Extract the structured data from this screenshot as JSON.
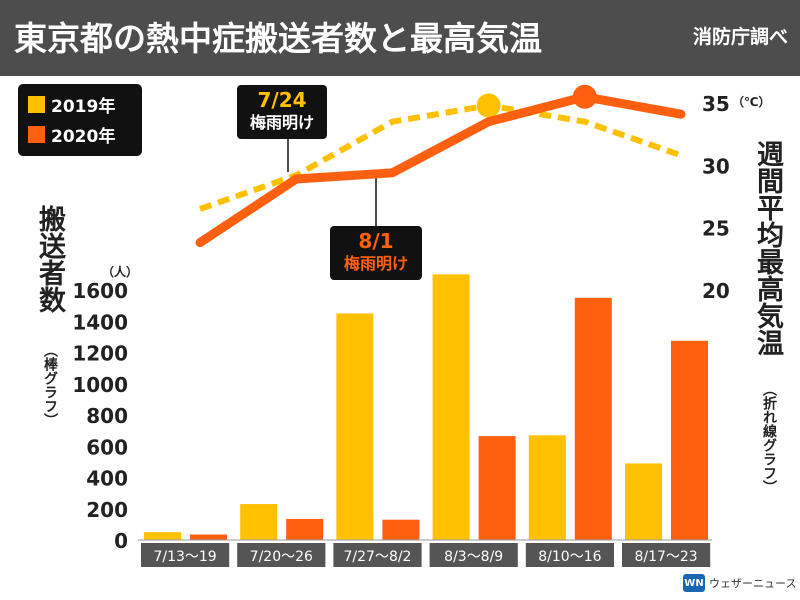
{
  "header": {
    "title": "東京都の熱中症搬送者数と最高気温",
    "source": "消防庁調べ"
  },
  "legend": {
    "items": [
      {
        "label": "2019年",
        "color": "#ffc000"
      },
      {
        "label": "2020年",
        "color": "#ff6010"
      }
    ]
  },
  "axes": {
    "left_title": "搬送者数",
    "left_sub": "（棒グラフ）",
    "left_unit": "（人）",
    "right_title": "週間平均最高気温",
    "right_sub": "（折れ線グラフ）",
    "right_unit": "（℃）"
  },
  "callouts": {
    "c2019": {
      "date": "7/24",
      "note": "梅雨明け"
    },
    "c2020": {
      "date": "8/1",
      "note": "梅雨明け"
    }
  },
  "brand": {
    "name": "ウェザーニュース",
    "logo_text": "WN"
  },
  "chart_data": {
    "type": "bar",
    "categories": [
      "7/13～19",
      "7/20～26",
      "7/27～8/2",
      "8/3～8/9",
      "8/10～16",
      "8/17～23"
    ],
    "series": [
      {
        "name": "2019年",
        "values": [
          50,
          230,
          1450,
          1700,
          670,
          490
        ]
      },
      {
        "name": "2020年",
        "values": [
          35,
          135,
          130,
          665,
          1550,
          1275
        ]
      }
    ],
    "ylim": [
      0,
      1700
    ],
    "yticks": [
      0,
      200,
      400,
      600,
      800,
      1000,
      1200,
      1400,
      1600
    ],
    "line_series": [
      {
        "name": "2019年",
        "values": [
          26.5,
          29.2,
          33.5,
          34.8,
          33.5,
          30.8
        ],
        "style": "dashed",
        "highlight_index": 3
      },
      {
        "name": "2020年",
        "values": [
          23.8,
          28.9,
          29.4,
          33.5,
          35.5,
          34.1
        ],
        "style": "solid",
        "highlight_index": 4
      }
    ],
    "y2lim": [
      13,
      36
    ],
    "y2ticks": [
      20,
      25,
      30,
      35
    ],
    "colors": {
      "2019": "#ffc000",
      "2020": "#ff6010",
      "category_bg": "#555555"
    }
  }
}
